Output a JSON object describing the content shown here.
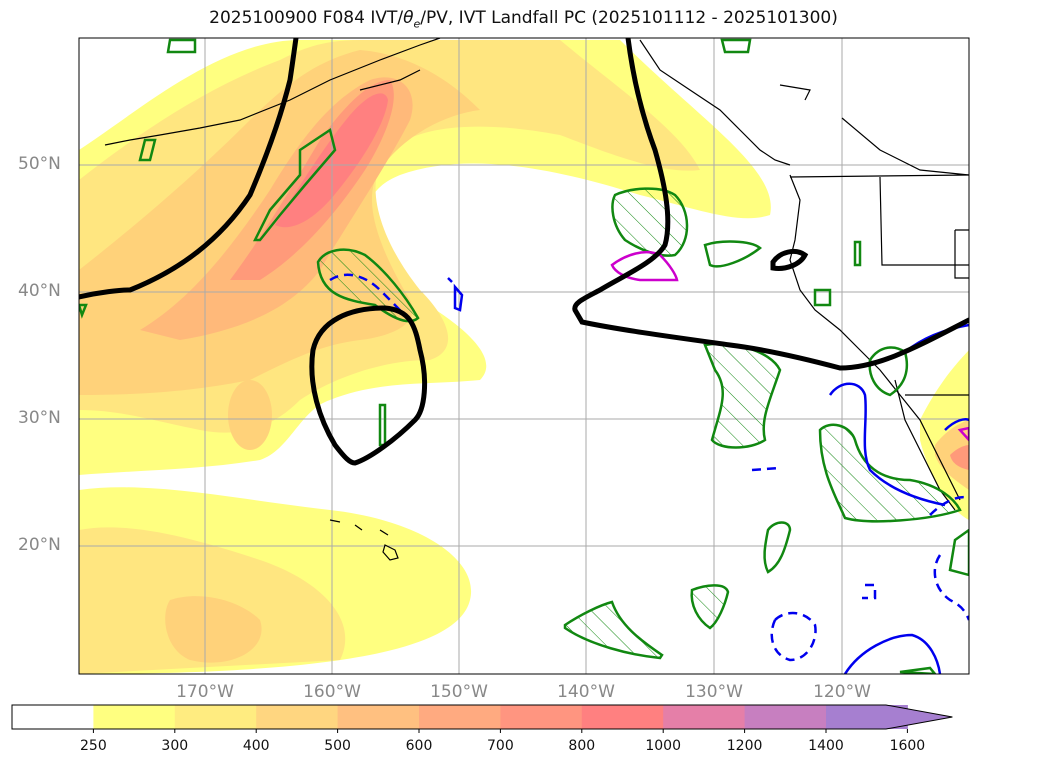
{
  "title": "2025100900 F084 IVT/θe/PV, IVT Landfall PC (2025101112 - 2025101300)",
  "title_parts": {
    "pre": "2025100900 F084 IVT/",
    "theta": "θ",
    "sub": "e",
    "post": "/PV, IVT Landfall PC (2025101112 - 2025101300)"
  },
  "lat_labels": [
    "50°N",
    "40°N",
    "30°N",
    "20°N"
  ],
  "lon_labels": [
    "170°W",
    "160°W",
    "150°W",
    "140°W",
    "130°W",
    "120°W"
  ],
  "colorbar": {
    "ticks": [
      "250",
      "300",
      "400",
      "500",
      "600",
      "700",
      "800",
      "1000",
      "1200",
      "1400",
      "1600"
    ],
    "colors": [
      "#ffffff",
      "#ffff80",
      "#ffec80",
      "#ffd680",
      "#ffc080",
      "#ffaa80",
      "#ff9580",
      "#ff8080",
      "#e57fa8",
      "#c77fc0",
      "#a67fd0"
    ],
    "extend": "max"
  },
  "map_colors": {
    "ivt_250": "#ffff80",
    "ivt_300": "#ffe680",
    "ivt_400": "#ffd27a",
    "ivt_500": "#ffb97a",
    "ivt_700": "#ff9a7a",
    "ivt_800": "#ff8080",
    "pv_green": "#118811",
    "theta_blue": "#0000ee",
    "magenta": "#cc00cc",
    "contour_black": "#000000"
  }
}
